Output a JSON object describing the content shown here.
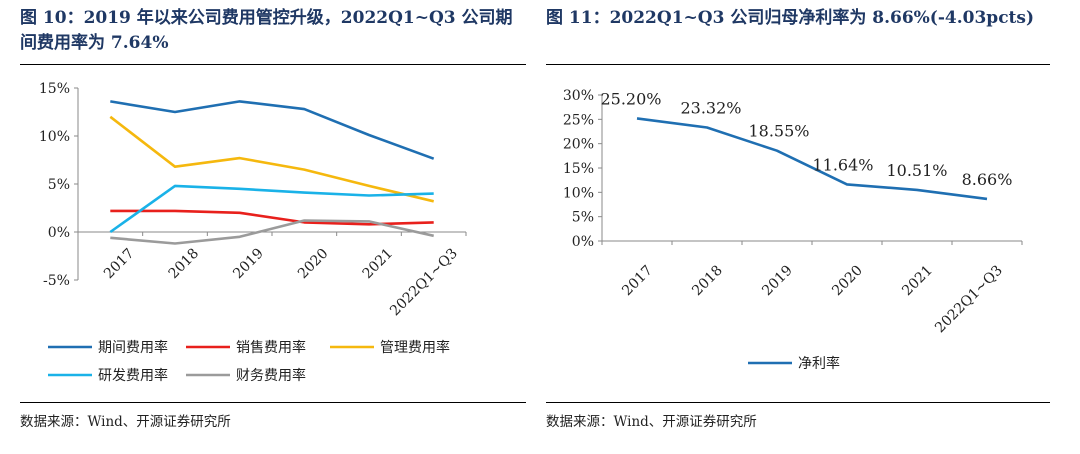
{
  "left": {
    "title": "图 10：2019 年以来公司费用管控升级，2022Q1~Q3 公司期间费用率为 7.64%",
    "source": "数据来源：Wind、开源证券研究所"
  },
  "right": {
    "title": "图 11：2022Q1~Q3 公司归母净利率为 8.66%(-4.03pcts)",
    "source": "数据来源：Wind、开源证券研究所"
  },
  "chart_data": [
    {
      "type": "line",
      "title": "",
      "categories": [
        "2017",
        "2018",
        "2019",
        "2020",
        "2021",
        "2022Q1~Q3"
      ],
      "ylim": [
        -5,
        15
      ],
      "yticks": [
        "-5%",
        "0%",
        "5%",
        "10%",
        "15%"
      ],
      "legend_position": "bottom",
      "grid": false,
      "series": [
        {
          "name": "期间费用率",
          "color": "#1f6fb2",
          "values": [
            13.6,
            12.5,
            13.6,
            12.8,
            10.1,
            7.64
          ]
        },
        {
          "name": "销售费用率",
          "color": "#e8201c",
          "values": [
            2.2,
            2.2,
            2.0,
            1.0,
            0.8,
            1.0
          ]
        },
        {
          "name": "管理费用率",
          "color": "#f5b80e",
          "values": [
            12.0,
            6.8,
            7.7,
            6.5,
            4.8,
            3.2
          ]
        },
        {
          "name": "研发费用率",
          "color": "#1ab2e8",
          "values": [
            0.0,
            4.8,
            4.5,
            4.1,
            3.8,
            4.0
          ]
        },
        {
          "name": "财务费用率",
          "color": "#9b9b9b",
          "values": [
            -0.6,
            -1.2,
            -0.5,
            1.2,
            1.1,
            -0.4
          ]
        }
      ]
    },
    {
      "type": "line",
      "title": "",
      "categories": [
        "2017",
        "2018",
        "2019",
        "2020",
        "2021",
        "2022Q1~Q3"
      ],
      "ylim": [
        0,
        30
      ],
      "yticks": [
        "0%",
        "5%",
        "10%",
        "15%",
        "20%",
        "25%",
        "30%"
      ],
      "legend_position": "bottom",
      "grid": false,
      "series": [
        {
          "name": "净利率",
          "color": "#1f6fb2",
          "values": [
            25.2,
            23.32,
            18.55,
            11.64,
            10.51,
            8.66
          ],
          "labels": [
            "25.20%",
            "23.32%",
            "18.55%",
            "11.64%",
            "10.51%",
            "8.66%"
          ]
        }
      ]
    }
  ]
}
